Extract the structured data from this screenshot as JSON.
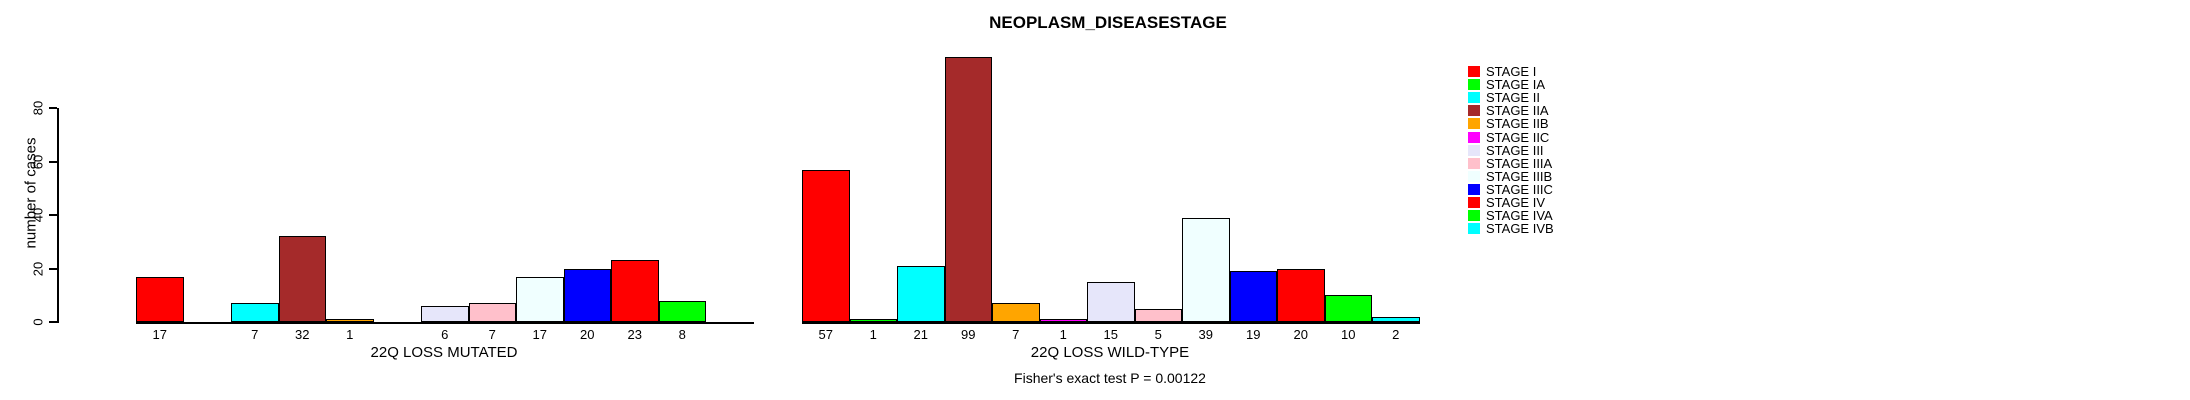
{
  "chart_data": {
    "type": "bar",
    "title": "NEOPLASM_DISEASESTAGE",
    "ylabel": "number of cases",
    "xlabel": "",
    "annotation": "Fisher's exact test P = 0.00122",
    "yticks": [
      0,
      20,
      40,
      60,
      80
    ],
    "ylim": [
      0,
      80
    ],
    "grid": false,
    "legend_position": "right",
    "categories": [
      "STAGE I",
      "STAGE IA",
      "STAGE II",
      "STAGE IIA",
      "STAGE IIB",
      "STAGE IIC",
      "STAGE III",
      "STAGE IIIA",
      "STAGE IIIB",
      "STAGE IIIC",
      "STAGE IV",
      "STAGE IVA",
      "STAGE IVB"
    ],
    "colors": [
      "#FF0000",
      "#00FF00",
      "#00FFFF",
      "#A52A2A",
      "#FFA500",
      "#FF00FF",
      "#E6E6FA",
      "#FFC0CB",
      "#F0FFFF",
      "#0000FF",
      "#FF0000",
      "#00FF00",
      "#00FFFF"
    ],
    "groups": [
      {
        "label": "22Q LOSS MUTATED",
        "values": [
          17,
          0,
          7,
          32,
          1,
          0,
          6,
          7,
          17,
          20,
          23,
          8,
          0
        ]
      },
      {
        "label": "22Q LOSS WILD-TYPE",
        "values": [
          57,
          1,
          21,
          99,
          7,
          1,
          15,
          5,
          39,
          19,
          20,
          10,
          2
        ]
      }
    ]
  }
}
